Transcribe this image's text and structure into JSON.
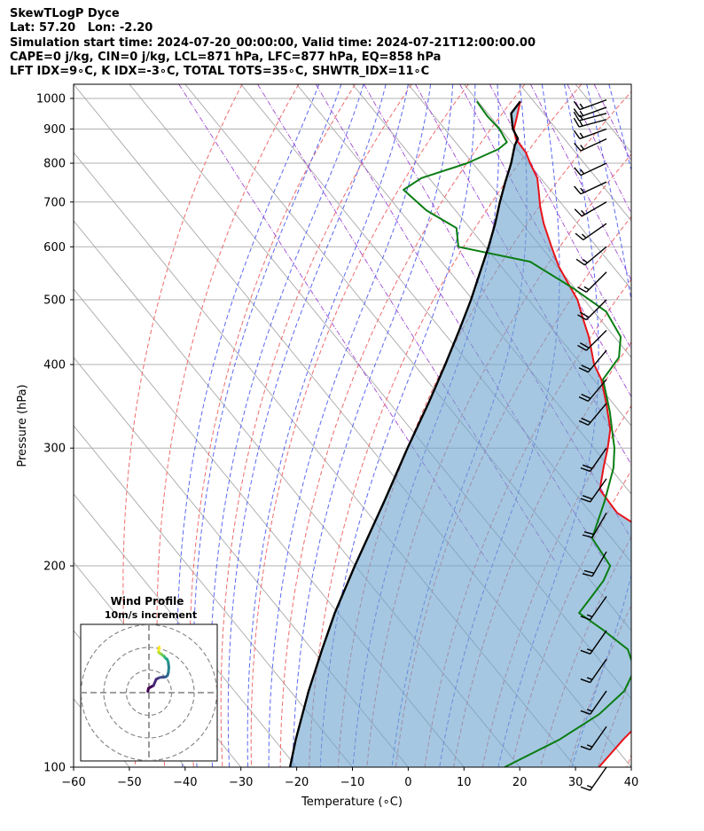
{
  "header": {
    "lines": [
      "SkewTLogP Dyce",
      "Lat: 57.20   Lon: -2.20",
      "Simulation start time: 2024-07-20_00:00:00, Valid time: 2024-07-21T12:00:00.00",
      "CAPE=0 j/kg, CIN=0 j/kg, LCL=871 hPa, LFC=877 hPa, EQ=858 hPa",
      "LFT IDX=9∘C, K IDX=-3∘C, TOTAL TOTS=35∘C, SHWTR_IDX=11∘C"
    ]
  },
  "chart_data": {
    "type": "line",
    "title": "SkewTLogP Dyce",
    "xlabel": "Temperature (∘C)",
    "ylabel": "Pressure (hPa)",
    "xlim": [
      -60,
      40
    ],
    "ylim": [
      1050,
      100
    ],
    "y_scale": "log",
    "x_ticks": [
      -60,
      -50,
      -40,
      -30,
      -20,
      -10,
      0,
      10,
      20,
      30,
      40
    ],
    "y_ticks": [
      1000,
      900,
      800,
      700,
      600,
      500,
      400,
      300,
      200,
      100
    ],
    "grid": true,
    "series": [
      {
        "role": "temperature",
        "color": "#e8141a",
        "p": [
          990,
          940,
          900,
          870,
          830,
          800,
          760,
          720,
          690,
          650,
          600,
          560,
          520,
          500,
          470,
          440,
          400,
          380,
          350,
          320,
          300,
          280,
          260,
          240,
          220,
          200,
          190,
          180,
          160,
          150,
          140,
          130,
          120,
          110,
          100
        ],
        "t": [
          17.6,
          14.8,
          12.4,
          11.3,
          11.1,
          10.3,
          9.4,
          7.4,
          5.8,
          3.9,
          1.9,
          0.3,
          -0.7,
          -1.2,
          -2.9,
          -4.6,
          -7.7,
          -8.6,
          -11.2,
          -14.3,
          -17.5,
          -21.2,
          -25.0,
          -25.3,
          -21.9,
          -18.0,
          -18.3,
          -20.0,
          -23.6,
          -28.1,
          -34.4,
          -41.6,
          -49.2,
          -57.4,
          -65.8
        ]
      },
      {
        "role": "dewpoint",
        "color": "#0a7d14",
        "p": [
          990,
          940,
          900,
          860,
          840,
          800,
          760,
          730,
          680,
          640,
          600,
          570,
          520,
          480,
          440,
          410,
          380,
          340,
          320,
          300,
          280,
          250,
          220,
          200,
          190,
          180,
          170,
          160,
          150,
          140,
          130,
          120,
          110,
          100
        ],
        "t": [
          9.8,
          9.5,
          9.8,
          9.2,
          6.7,
          -1.0,
          -11.4,
          -16.3,
          -15.2,
          -12.4,
          -14.8,
          -4.1,
          -0.3,
          2.2,
          1.1,
          -2.2,
          -8.3,
          -11.8,
          -14.0,
          -16.3,
          -19.4,
          -25.8,
          -33.5,
          -34.3,
          -37.7,
          -42.1,
          -46.8,
          -44.9,
          -43.4,
          -45.1,
          -50.1,
          -58.0,
          -68.8,
          -82.7
        ]
      },
      {
        "role": "parcel",
        "color": "#000000",
        "p": [
          990,
          950,
          900,
          871,
          850,
          800,
          750,
          700,
          650,
          600,
          550,
          500,
          450,
          400,
          350,
          300,
          250,
          200,
          170,
          150,
          130,
          110,
          100
        ],
        "t": [
          17.6,
          14.2,
          12.2,
          11.7,
          10.1,
          6.9,
          3.1,
          -0.8,
          -4.8,
          -9.4,
          -14.6,
          -20.3,
          -26.9,
          -34.4,
          -43.1,
          -53.4,
          -65.3,
          -80.1,
          -90.6,
          -98.2,
          -106.7,
          -116.1,
          -121.2
        ]
      }
    ],
    "wind_barbs": {
      "p": [
        995,
        970,
        950,
        930,
        900,
        870,
        800,
        750,
        700,
        650,
        600,
        550,
        500,
        450,
        420,
        380,
        350,
        300,
        270,
        240,
        210,
        180,
        160,
        145,
        130,
        115,
        100
      ],
      "speed_kt": [
        15,
        15,
        15,
        15,
        15,
        15,
        15,
        15,
        15,
        15,
        15,
        15,
        20,
        20,
        20,
        20,
        20,
        20,
        20,
        20,
        20,
        15,
        15,
        15,
        15,
        15,
        15
      ],
      "dir_deg": [
        250,
        250,
        255,
        255,
        250,
        245,
        245,
        245,
        240,
        235,
        230,
        225,
        225,
        225,
        220,
        220,
        220,
        215,
        215,
        210,
        210,
        215,
        215,
        215,
        215,
        215,
        215
      ]
    },
    "inset": {
      "title": "Wind Profile",
      "subtitle": "10m/s increment",
      "u": [
        -0.5,
        -0.2,
        1.0,
        2.0,
        3.2,
        4.5,
        5.5,
        6.5,
        7.5,
        8.2,
        8.6,
        8.8,
        8.5,
        8.0,
        7.5,
        7.1,
        6.6,
        6.0,
        5.6,
        5.1,
        4.7,
        4.3,
        4.3,
        4.6,
        4.5
      ],
      "v": [
        0.5,
        1.9,
        2.6,
        3.1,
        5.9,
        6.6,
        6.8,
        6.8,
        7.0,
        7.6,
        9.0,
        11.2,
        13.6,
        14.8,
        15.1,
        15.5,
        16.2,
        16.5,
        17.0,
        17.2,
        17.5,
        17.9,
        18.9,
        19.5,
        20.2
      ]
    }
  }
}
